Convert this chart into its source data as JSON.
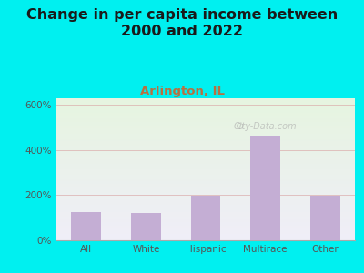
{
  "title": "Change in per capita income between\n2000 and 2022",
  "subtitle": "Arlington, IL",
  "categories": [
    "All",
    "White",
    "Hispanic",
    "Multirace",
    "Other"
  ],
  "values": [
    125,
    122,
    197,
    462,
    197
  ],
  "bar_color": "#c4aed4",
  "title_fontsize": 11.5,
  "subtitle_fontsize": 9.5,
  "subtitle_color": "#b87040",
  "title_color": "#1a1a1a",
  "bg_outer": "#00f0f0",
  "bg_plot_top": "#e6f5e0",
  "bg_plot_bottom": "#f0eef8",
  "grid_color": "#d9a0a0",
  "tick_color": "#555555",
  "ylim": [
    0,
    630
  ],
  "yticks": [
    0,
    200,
    400,
    600
  ],
  "ytick_labels": [
    "0%",
    "200%",
    "400%",
    "600%"
  ],
  "watermark": "City-Data.com",
  "bar_width": 0.5
}
